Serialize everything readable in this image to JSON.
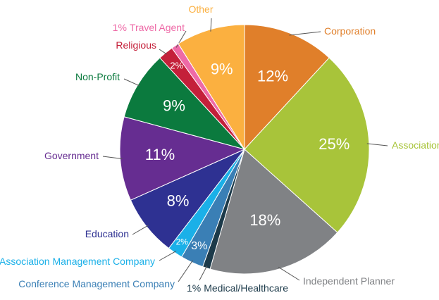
{
  "chart_data": {
    "type": "pie",
    "categories": [
      "Corporation",
      "Association",
      "Independent Planner",
      "Medical/Healthcare",
      "Conference Management Company",
      "Association Management Company",
      "Education",
      "Government",
      "Non-Profit",
      "Religious",
      "Travel Agent",
      "Other"
    ],
    "values": [
      12,
      25,
      18,
      1,
      3,
      2,
      8,
      11,
      9,
      2,
      1,
      9
    ],
    "value_labels": [
      "12%",
      "25%",
      "18%",
      "1%",
      "3%",
      "2%",
      "8%",
      "11%",
      "9%",
      "2%",
      "1%",
      "9%"
    ],
    "colors": [
      "#e07f2a",
      "#a8c43a",
      "#808285",
      "#1c3a4a",
      "#3a7fb5",
      "#1ab0e8",
      "#2e3192",
      "#662d91",
      "#0b7a3e",
      "#c4203a",
      "#ee6aa7",
      "#fbb040"
    ]
  }
}
